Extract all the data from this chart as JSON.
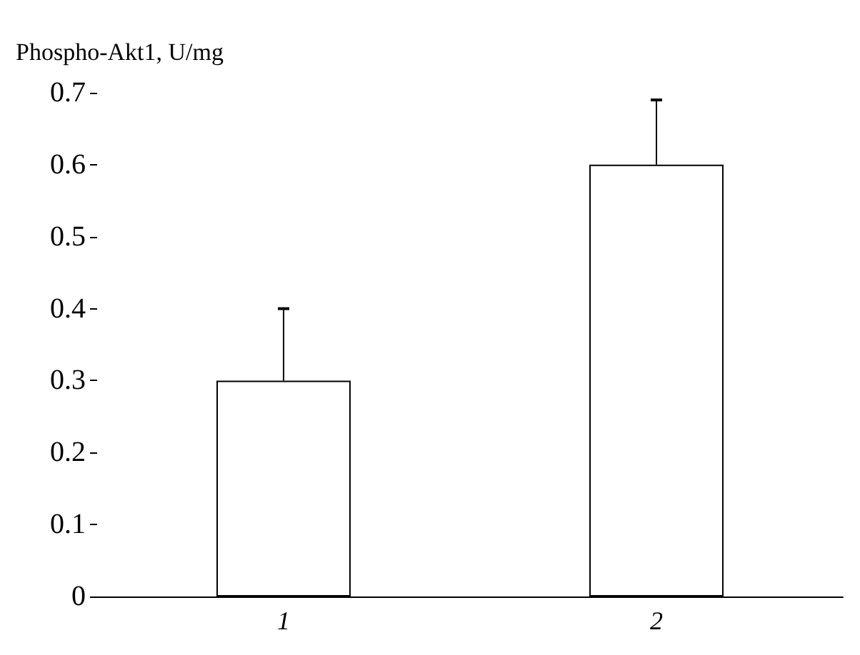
{
  "chart_data": {
    "type": "bar",
    "ylabel": "Phospho-Akt1, U/mg",
    "categories": [
      "1",
      "2"
    ],
    "values": [
      0.3,
      0.6
    ],
    "errors": [
      [
        0.3,
        0.4
      ],
      [
        0.6,
        0.69
      ]
    ],
    "color": "#ffffff",
    "ylim": [
      0,
      0.7
    ],
    "yticks": [
      0,
      0.1,
      0.2,
      0.3,
      0.4,
      0.5,
      0.6,
      0.7
    ],
    "grid": false
  }
}
